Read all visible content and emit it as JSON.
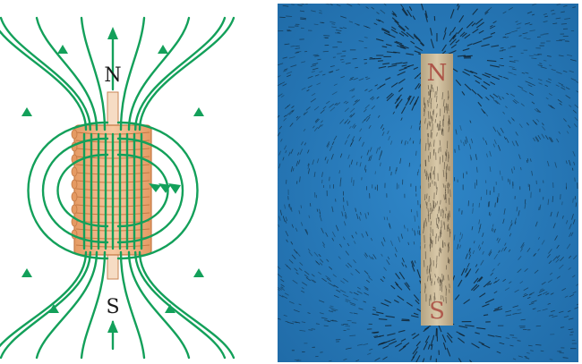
{
  "left_figure": {
    "north_label": "N",
    "south_label": "S"
  },
  "right_figure": {
    "north_marking": "N",
    "south_marking": "S"
  },
  "colors": {
    "field_line": "#13a05a",
    "solenoid_copper": "#f2b98a",
    "photo_background": "#2a7bbd",
    "magnet_bar": "#c9b89a",
    "pole_marking": "#a8433a"
  }
}
